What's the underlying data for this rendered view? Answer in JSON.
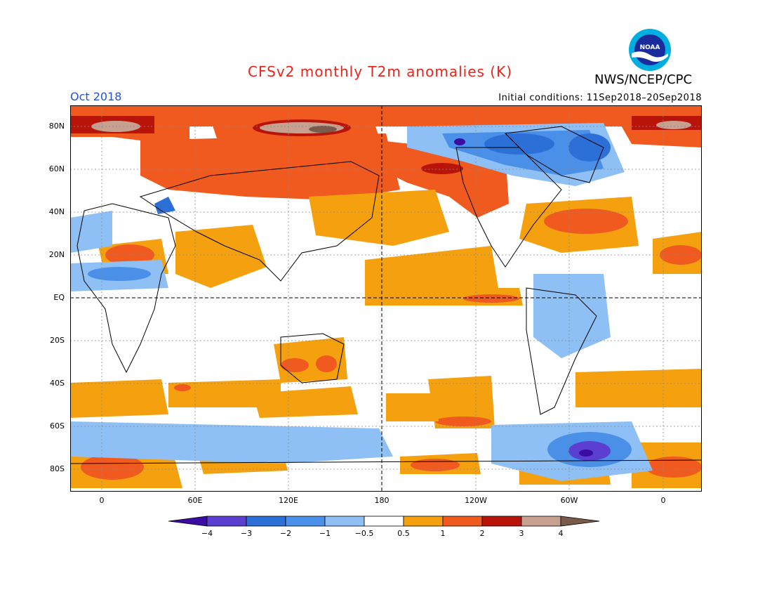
{
  "header": {
    "title": "CFSv2 monthly T2m anomalies (K)",
    "agency": "NWS/NCEP/CPC",
    "month": "Oct 2018",
    "initial_conditions": "Initial conditions: 11Sep2018–20Sep2018",
    "logo_text": "NOAA"
  },
  "map": {
    "lat_labels": [
      "80N",
      "60N",
      "40N",
      "20N",
      "EQ",
      "20S",
      "40S",
      "60S",
      "80S"
    ],
    "lon_labels": [
      "0",
      "60E",
      "120E",
      "180",
      "120W",
      "60W",
      "0"
    ]
  },
  "colorbar": {
    "labels": [
      "−4",
      "−3",
      "−2",
      "−1",
      "−0.5",
      "0.5",
      "1",
      "2",
      "3",
      "4"
    ],
    "colors": {
      "lt_minus4": "#3a0ca3",
      "m4_m3": "#5b3fd1",
      "m3_m2": "#2c6fd6",
      "m2_m1": "#4a90e8",
      "m1_m05": "#8fc0f5",
      "m05_05": "#ffffff",
      "p05_1": "#f5a10f",
      "p1_2": "#f05a1e",
      "p2_3": "#b8140a",
      "p3_4": "#c8a090",
      "gt_4": "#7a5a4a"
    }
  }
}
